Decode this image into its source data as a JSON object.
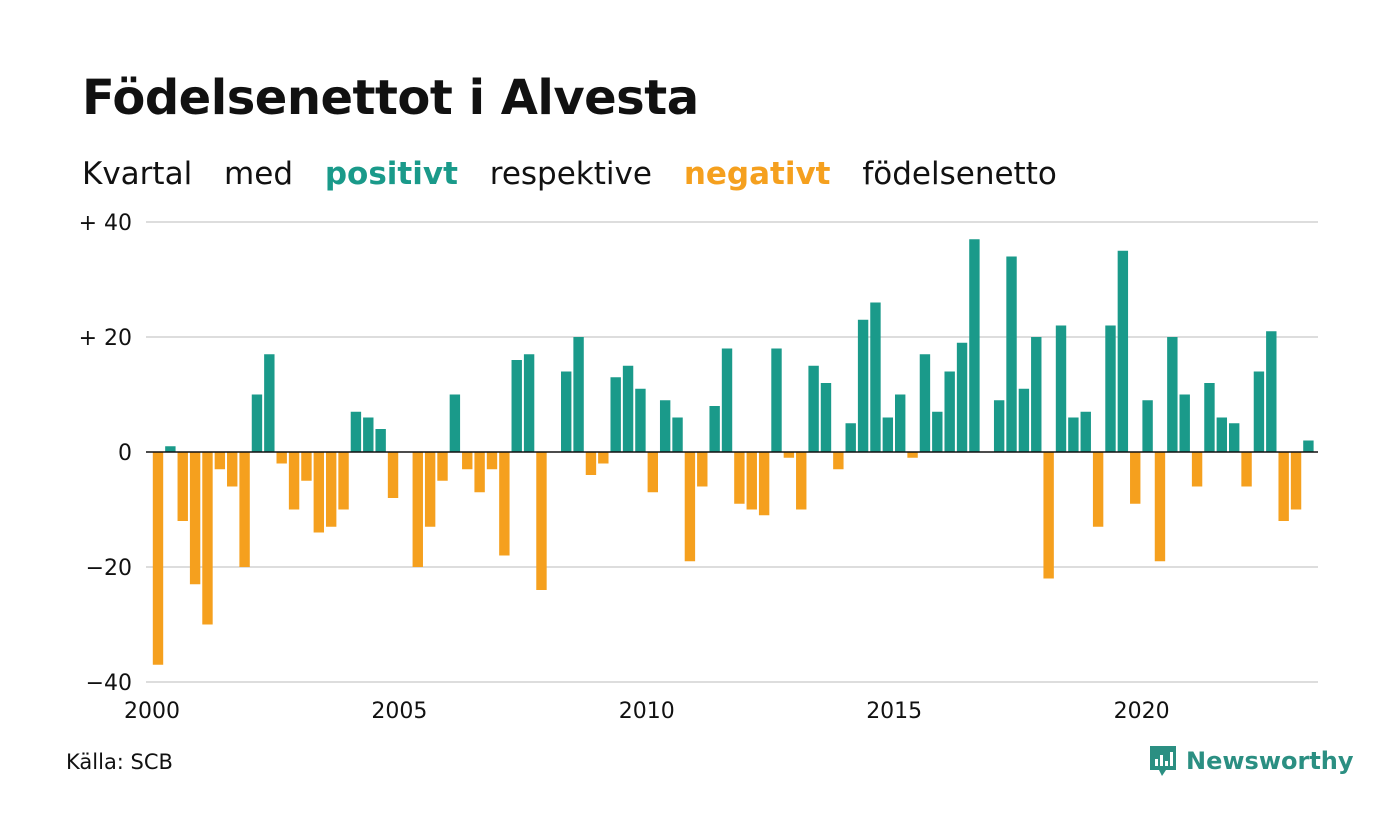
{
  "header": {
    "title": "Födelsenettot i Alvesta",
    "subtitle_parts": [
      "Kvartal",
      "med",
      "positivt",
      "respektive",
      "negativt",
      "födelsenetto"
    ]
  },
  "footer": {
    "source": "Källa: SCB",
    "brand": "Newsworthy"
  },
  "colors": {
    "positive": "#1a9a8a",
    "negative": "#f5a01e",
    "grid": "#dddddd",
    "brand": "#2b8f82"
  },
  "chart_data": {
    "type": "bar",
    "x_start": "2000 Q1",
    "y_tick_labels": [
      "+ 40",
      "+ 20",
      "0",
      "−20",
      "−40"
    ],
    "y_ticks": [
      40,
      20,
      0,
      -20,
      -40
    ],
    "x_tick_labels": [
      "2000",
      "2005",
      "2010",
      "2015",
      "2020"
    ],
    "ylim": [
      -40,
      40
    ],
    "grid": true,
    "values": [
      -37,
      1,
      -12,
      -23,
      -30,
      -3,
      -6,
      -20,
      10,
      17,
      -2,
      -10,
      -5,
      -14,
      -13,
      -10,
      7,
      6,
      4,
      -8,
      0,
      -20,
      -13,
      -5,
      10,
      -3,
      -7,
      -3,
      -18,
      16,
      17,
      -24,
      0,
      14,
      20,
      -4,
      -2,
      13,
      15,
      11,
      -7,
      9,
      6,
      -19,
      -6,
      8,
      18,
      -9,
      -10,
      -11,
      18,
      -1,
      -10,
      15,
      12,
      -3,
      5,
      23,
      26,
      6,
      10,
      -1,
      17,
      7,
      14,
      19,
      37,
      0,
      9,
      34,
      11,
      20,
      -22,
      22,
      6,
      7,
      -13,
      22,
      35,
      -9,
      9,
      -19,
      20,
      10,
      -6,
      12,
      6,
      5,
      -6,
      14,
      21,
      -12,
      -10,
      2
    ]
  }
}
